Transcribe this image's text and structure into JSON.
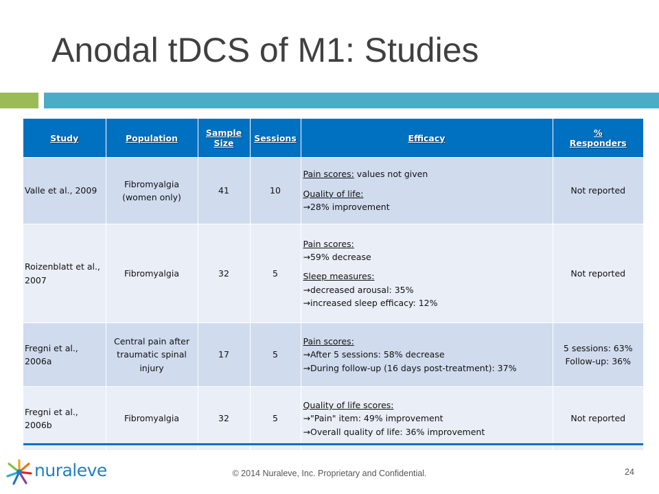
{
  "title": "Anodal tDCS of M1: Studies",
  "colors": {
    "accent_green": "#9bbb59",
    "accent_blue": "#4bacc6",
    "header_blue": "#0070c0",
    "row_dark": "#d0dbee",
    "row_light": "#e9eef7"
  },
  "table": {
    "headers": {
      "study": "Study",
      "population": "Population",
      "sample_size_1": "Sample",
      "sample_size_2": "Size",
      "sessions": "Sessions",
      "efficacy": "Efficacy",
      "responders_1": "%",
      "responders_2": "Responders"
    },
    "rows": [
      {
        "study": "Valle et al., 2009",
        "population": "Fibromyalgia (women only)",
        "sample_size": "41",
        "sessions": "10",
        "efficacy": [
          {
            "heading": "Pain scores:",
            "text": " values not given"
          },
          {
            "heading": "Quality of life:",
            "text": ""
          },
          {
            "text": "→28% improvement"
          }
        ],
        "responders": "Not reported"
      },
      {
        "study": "Roizenblatt et al., 2007",
        "population": "Fibromyalgia",
        "sample_size": "32",
        "sessions": "5",
        "efficacy": [
          {
            "heading": "Pain scores:"
          },
          {
            "text": "→59% decrease"
          },
          {
            "heading": "Sleep measures:"
          },
          {
            "text": "→decreased arousal: 35%"
          },
          {
            "text": "→increased sleep efficacy: 12%"
          }
        ],
        "responders": "Not reported"
      },
      {
        "study": "Fregni et al., 2006a",
        "population": "Central pain after traumatic spinal injury",
        "sample_size": "17",
        "sessions": "5",
        "efficacy": [
          {
            "heading": "Pain scores:"
          },
          {
            "text": "→After 5 sessions: 58% decrease"
          },
          {
            "text": "→During follow-up (16 days post-treatment): 37%"
          }
        ],
        "responders_1": "5 sessions: 63%",
        "responders_2": "Follow-up: 36%"
      },
      {
        "study": "Fregni et al., 2006b",
        "population": "Fibromyalgia",
        "sample_size": "32",
        "sessions": "5",
        "efficacy": [
          {
            "heading": "Quality of life scores:"
          },
          {
            "text": "→\"Pain\" item: 49%  improvement"
          },
          {
            "text": "→Overall quality of life: 36% improvement"
          }
        ],
        "responders": "Not reported"
      }
    ]
  },
  "footer": {
    "logo_text": "nuraleve",
    "copyright": "© 2014 Nuraleve, Inc. Proprietary and Confidential.",
    "page_number": "24"
  }
}
